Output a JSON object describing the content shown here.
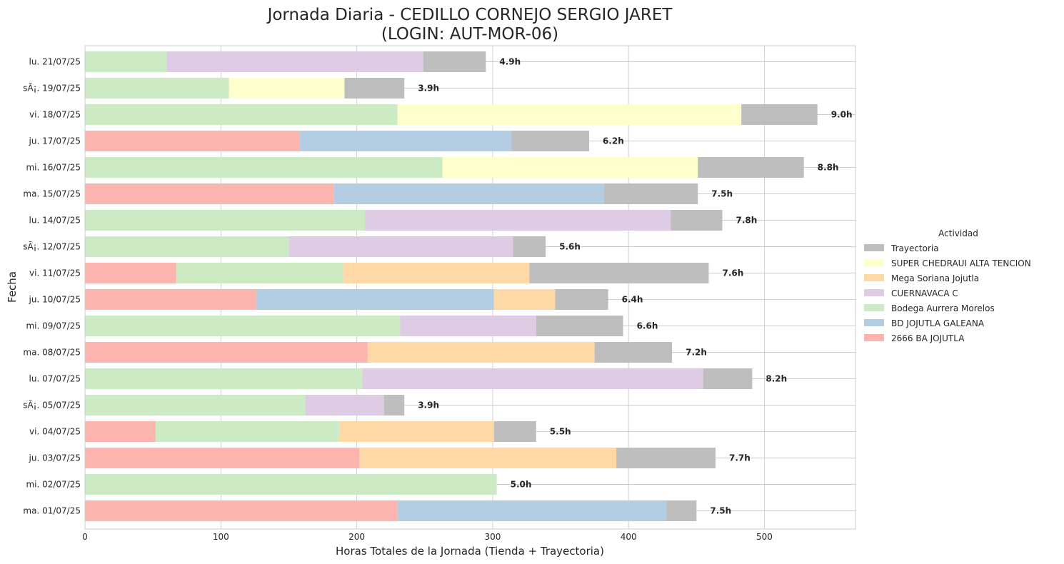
{
  "chart_data": {
    "type": "bar",
    "orientation": "horizontal",
    "stacked": true,
    "title": "Jornada Diaria - CEDILLO CORNEJO SERGIO JARET",
    "subtitle": "(LOGIN: AUT-MOR-06)",
    "xlabel": "Horas Totales de la Jornada (Tienda + Trayectoria)",
    "ylabel": "Fecha",
    "xlim": [
      0,
      567
    ],
    "xticks": [
      0,
      100,
      200,
      300,
      400,
      500
    ],
    "grid": true,
    "legend": {
      "title": "Actividad",
      "placement": "right",
      "entries": [
        "Trayectoria",
        "SUPER CHEDRAUI ALTA TENCION",
        "Mega Soriana Jojutla",
        "CUERNAVACA C",
        "Bodega Aurrera Morelos",
        "BD JOJUTLA GALEANA",
        "2666 BA JOJUTLA"
      ]
    },
    "colors": {
      "2666 BA JOJUTLA": "#fbb4ae",
      "BD JOJUTLA GALEANA": "#b3cde3",
      "Bodega Aurrera Morelos": "#ccebc5",
      "CUERNAVACA C": "#decbe4",
      "Mega Soriana Jojutla": "#fed9a6",
      "SUPER CHEDRAUI ALTA TENCION": "#ffffcc",
      "Trayectoria": "#bebebe"
    },
    "categories": [
      "lu. 21/07/25",
      "sÃ¡. 19/07/25",
      "vi. 18/07/25",
      "ju. 17/07/25",
      "mi. 16/07/25",
      "ma. 15/07/25",
      "lu. 14/07/25",
      "sÃ¡. 12/07/25",
      "vi. 11/07/25",
      "ju. 10/07/25",
      "mi. 09/07/25",
      "ma. 08/07/25",
      "lu. 07/07/25",
      "sÃ¡. 05/07/25",
      "vi. 04/07/25",
      "ju. 03/07/25",
      "mi. 02/07/25",
      "ma. 01/07/25"
    ],
    "rows": [
      {
        "segments": [
          {
            "name": "Bodega Aurrera Morelos",
            "value": 60
          },
          {
            "name": "CUERNAVACA C",
            "value": 189
          },
          {
            "name": "Trayectoria",
            "value": 46
          }
        ],
        "total_label": "4.9h"
      },
      {
        "segments": [
          {
            "name": "Bodega Aurrera Morelos",
            "value": 106
          },
          {
            "name": "SUPER CHEDRAUI ALTA TENCION",
            "value": 85
          },
          {
            "name": "Trayectoria",
            "value": 44
          }
        ],
        "total_label": "3.9h"
      },
      {
        "segments": [
          {
            "name": "Bodega Aurrera Morelos",
            "value": 230
          },
          {
            "name": "SUPER CHEDRAUI ALTA TENCION",
            "value": 253
          },
          {
            "name": "Trayectoria",
            "value": 56
          }
        ],
        "total_label": "9.0h"
      },
      {
        "segments": [
          {
            "name": "2666 BA JOJUTLA",
            "value": 158
          },
          {
            "name": "BD JOJUTLA GALEANA",
            "value": 156
          },
          {
            "name": "Trayectoria",
            "value": 57
          }
        ],
        "total_label": "6.2h"
      },
      {
        "segments": [
          {
            "name": "Bodega Aurrera Morelos",
            "value": 263
          },
          {
            "name": "SUPER CHEDRAUI ALTA TENCION",
            "value": 188
          },
          {
            "name": "Trayectoria",
            "value": 78
          }
        ],
        "total_label": "8.8h"
      },
      {
        "segments": [
          {
            "name": "2666 BA JOJUTLA",
            "value": 183
          },
          {
            "name": "BD JOJUTLA GALEANA",
            "value": 199
          },
          {
            "name": "Trayectoria",
            "value": 69
          }
        ],
        "total_label": "7.5h"
      },
      {
        "segments": [
          {
            "name": "Bodega Aurrera Morelos",
            "value": 206
          },
          {
            "name": "CUERNAVACA C",
            "value": 225
          },
          {
            "name": "Trayectoria",
            "value": 38
          }
        ],
        "total_label": "7.8h"
      },
      {
        "segments": [
          {
            "name": "Bodega Aurrera Morelos",
            "value": 150
          },
          {
            "name": "CUERNAVACA C",
            "value": 165
          },
          {
            "name": "Trayectoria",
            "value": 24
          }
        ],
        "total_label": "5.6h"
      },
      {
        "segments": [
          {
            "name": "2666 BA JOJUTLA",
            "value": 67
          },
          {
            "name": "Bodega Aurrera Morelos",
            "value": 123
          },
          {
            "name": "Mega Soriana Jojutla",
            "value": 137
          },
          {
            "name": "Trayectoria",
            "value": 132
          }
        ],
        "total_label": "7.6h"
      },
      {
        "segments": [
          {
            "name": "2666 BA JOJUTLA",
            "value": 126
          },
          {
            "name": "BD JOJUTLA GALEANA",
            "value": 175
          },
          {
            "name": "Mega Soriana Jojutla",
            "value": 45
          },
          {
            "name": "Trayectoria",
            "value": 39
          }
        ],
        "total_label": "6.4h"
      },
      {
        "segments": [
          {
            "name": "Bodega Aurrera Morelos",
            "value": 232
          },
          {
            "name": "CUERNAVACA C",
            "value": 100
          },
          {
            "name": "Trayectoria",
            "value": 64
          }
        ],
        "total_label": "6.6h"
      },
      {
        "segments": [
          {
            "name": "2666 BA JOJUTLA",
            "value": 208
          },
          {
            "name": "Mega Soriana Jojutla",
            "value": 167
          },
          {
            "name": "Trayectoria",
            "value": 57
          }
        ],
        "total_label": "7.2h"
      },
      {
        "segments": [
          {
            "name": "Bodega Aurrera Morelos",
            "value": 204
          },
          {
            "name": "CUERNAVACA C",
            "value": 251
          },
          {
            "name": "Trayectoria",
            "value": 36
          }
        ],
        "total_label": "8.2h"
      },
      {
        "segments": [
          {
            "name": "Bodega Aurrera Morelos",
            "value": 162
          },
          {
            "name": "CUERNAVACA C",
            "value": 58
          },
          {
            "name": "Trayectoria",
            "value": 15
          }
        ],
        "total_label": "3.9h"
      },
      {
        "segments": [
          {
            "name": "2666 BA JOJUTLA",
            "value": 52
          },
          {
            "name": "Bodega Aurrera Morelos",
            "value": 135
          },
          {
            "name": "Mega Soriana Jojutla",
            "value": 114
          },
          {
            "name": "Trayectoria",
            "value": 31
          }
        ],
        "total_label": "5.5h"
      },
      {
        "segments": [
          {
            "name": "2666 BA JOJUTLA",
            "value": 202
          },
          {
            "name": "Mega Soriana Jojutla",
            "value": 189
          },
          {
            "name": "Trayectoria",
            "value": 73
          }
        ],
        "total_label": "7.7h"
      },
      {
        "segments": [
          {
            "name": "Bodega Aurrera Morelos",
            "value": 303
          }
        ],
        "total_label": "5.0h"
      },
      {
        "segments": [
          {
            "name": "2666 BA JOJUTLA",
            "value": 230
          },
          {
            "name": "BD JOJUTLA GALEANA",
            "value": 198
          },
          {
            "name": "Trayectoria",
            "value": 22
          }
        ],
        "total_label": "7.5h"
      }
    ]
  }
}
